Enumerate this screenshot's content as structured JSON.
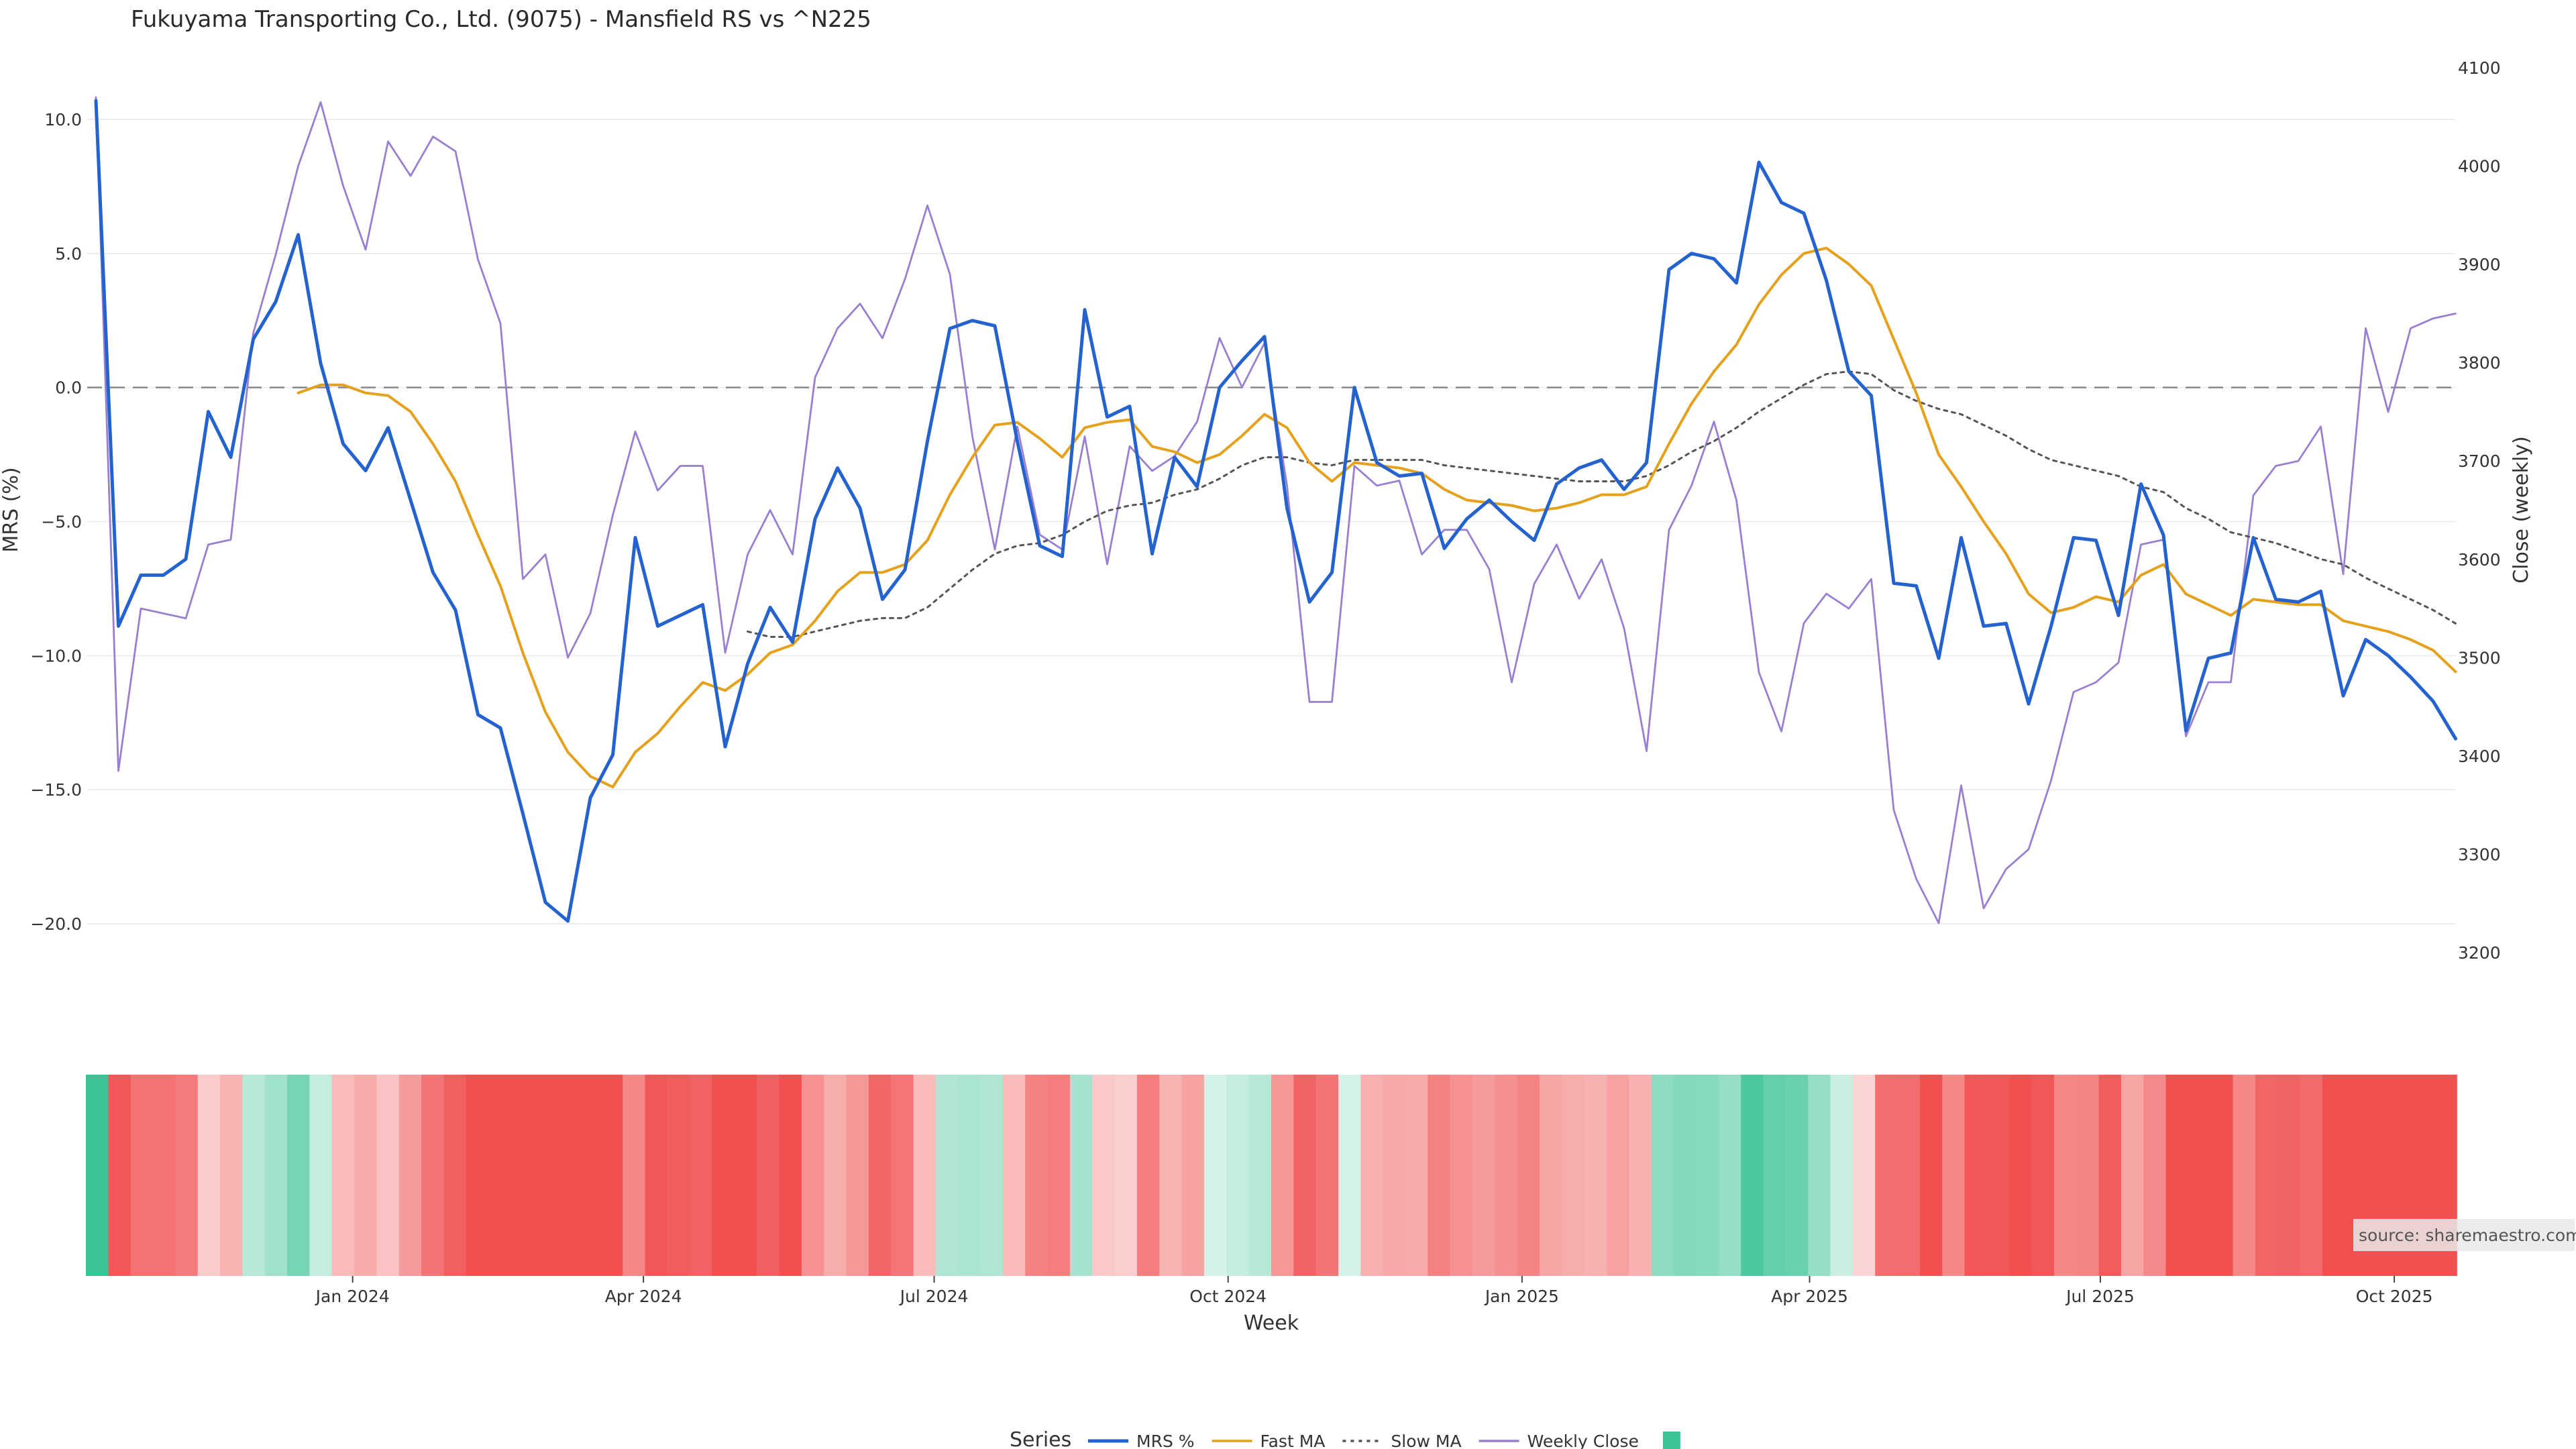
{
  "chart_data": {
    "type": "line",
    "title": "Fukuyama Transporting Co., Ltd. (9075) - Mansfield RS vs ^N225",
    "xlabel": "Week",
    "ylabel_left": "MRS (%)",
    "ylabel_right": "Close (weekly)",
    "ylim_left": [
      -22.0,
      10.8
    ],
    "ylim_right": [
      3200,
      4100
    ],
    "yticks_left": [
      "10.0",
      "5.0",
      "0.0",
      "−5.0",
      "−10.0",
      "−15.0",
      "−20.0"
    ],
    "yticks_left_values": [
      10,
      5,
      0,
      -5,
      -10,
      -15,
      -20
    ],
    "yticks_right": [
      "4100",
      "4000",
      "3900",
      "3800",
      "3700",
      "3600",
      "3500",
      "3400",
      "3300",
      "3200"
    ],
    "yticks_right_values": [
      4100,
      4000,
      3900,
      3800,
      3700,
      3600,
      3500,
      3400,
      3300,
      3200
    ],
    "x_start": "2023-10-13",
    "x_step_days": 7,
    "xticks": [
      {
        "label": "Jan 2024",
        "date": "2024-01-01"
      },
      {
        "label": "Apr 2024",
        "date": "2024-04-01"
      },
      {
        "label": "Jul 2024",
        "date": "2024-07-01"
      },
      {
        "label": "Oct 2024",
        "date": "2024-10-01"
      },
      {
        "label": "Jan 2025",
        "date": "2025-01-01"
      },
      {
        "label": "Apr 2025",
        "date": "2025-04-01"
      },
      {
        "label": "Jul 2025",
        "date": "2025-07-01"
      },
      {
        "label": "Oct 2025",
        "date": "2025-10-01"
      }
    ],
    "zero_line": 0,
    "grid": true,
    "legend_position": "bottom",
    "legend_title": "Series",
    "series": [
      {
        "name": "MRS %",
        "axis": "left",
        "color": "#2462d0",
        "style": "solid",
        "values": [
          10.7,
          -8.9,
          -7.0,
          -7.0,
          -6.4,
          -0.9,
          -2.6,
          1.8,
          3.2,
          5.7,
          0.9,
          -2.1,
          -3.1,
          -1.5,
          -4.2,
          -6.9,
          -8.3,
          -12.2,
          -12.7,
          -15.9,
          -19.2,
          -19.9,
          -15.3,
          -13.7,
          -5.6,
          -8.9,
          -8.5,
          -8.1,
          -13.4,
          -10.3,
          -8.2,
          -9.5,
          -4.9,
          -3.0,
          -4.5,
          -7.9,
          -6.8,
          -2.0,
          2.2,
          2.5,
          2.3,
          -2.0,
          -5.9,
          -6.3,
          2.9,
          -1.1,
          -0.7,
          -6.2,
          -2.6,
          -3.7,
          0.0,
          1.0,
          1.9,
          -4.5,
          -8.0,
          -6.9,
          0.0,
          -2.8,
          -3.3,
          -3.2,
          -6.0,
          -4.9,
          -4.2,
          -5.0,
          -5.7,
          -3.6,
          -3.0,
          -2.7,
          -3.8,
          -2.8,
          4.4,
          5.0,
          4.8,
          3.9,
          8.4,
          6.9,
          6.5,
          4.0,
          0.6,
          -0.3,
          -7.3,
          -7.4,
          -10.1,
          -5.6,
          -8.9,
          -8.8,
          -11.8,
          -8.9,
          -5.6,
          -5.7,
          -8.5,
          -3.6,
          -5.5,
          -12.8,
          -10.1,
          -9.9,
          -5.6,
          -7.9,
          -8.0,
          -7.6,
          -11.5,
          -9.4,
          -10.0,
          -10.8,
          -11.7,
          -13.1
        ]
      },
      {
        "name": "Fast MA",
        "axis": "left",
        "color": "#e6a11c",
        "style": "solid",
        "values": [
          null,
          null,
          null,
          null,
          null,
          null,
          null,
          null,
          null,
          -0.2,
          0.1,
          0.1,
          -0.2,
          -0.3,
          -0.9,
          -2.1,
          -3.5,
          -5.5,
          -7.4,
          -9.9,
          -12.1,
          -13.6,
          -14.5,
          -14.9,
          -13.6,
          -12.9,
          -11.9,
          -11.0,
          -11.3,
          -10.7,
          -9.9,
          -9.6,
          -8.7,
          -7.6,
          -6.9,
          -6.9,
          -6.6,
          -5.7,
          -4.0,
          -2.6,
          -1.4,
          -1.3,
          -1.9,
          -2.6,
          -1.5,
          -1.3,
          -1.2,
          -2.2,
          -2.4,
          -2.8,
          -2.5,
          -1.8,
          -1.0,
          -1.5,
          -2.8,
          -3.5,
          -2.8,
          -2.9,
          -3.0,
          -3.2,
          -3.8,
          -4.2,
          -4.3,
          -4.4,
          -4.6,
          -4.5,
          -4.3,
          -4.0,
          -4.0,
          -3.7,
          -2.1,
          -0.6,
          0.6,
          1.6,
          3.1,
          4.2,
          5.0,
          5.2,
          4.6,
          3.8,
          1.8,
          -0.2,
          -2.5,
          -3.7,
          -5.0,
          -6.2,
          -7.7,
          -8.4,
          -8.2,
          -7.8,
          -8.0,
          -7.0,
          -6.6,
          -7.7,
          -8.1,
          -8.5,
          -7.9,
          -8.0,
          -8.1,
          -8.1,
          -8.7,
          -8.9,
          -9.1,
          -9.4,
          -9.8,
          -10.6
        ]
      },
      {
        "name": "Slow MA",
        "axis": "left",
        "color": "#555555",
        "style": "dotted",
        "values": [
          null,
          null,
          null,
          null,
          null,
          null,
          null,
          null,
          null,
          null,
          null,
          null,
          null,
          null,
          null,
          null,
          null,
          null,
          null,
          null,
          null,
          null,
          null,
          null,
          null,
          null,
          null,
          null,
          null,
          -9.1,
          -9.3,
          -9.3,
          -9.1,
          -8.9,
          -8.7,
          -8.6,
          -8.6,
          -8.2,
          -7.5,
          -6.8,
          -6.2,
          -5.9,
          -5.8,
          -5.5,
          -5.0,
          -4.6,
          -4.4,
          -4.3,
          -4.0,
          -3.8,
          -3.4,
          -2.9,
          -2.6,
          -2.6,
          -2.8,
          -2.9,
          -2.7,
          -2.7,
          -2.7,
          -2.7,
          -2.9,
          -3.0,
          -3.1,
          -3.2,
          -3.3,
          -3.4,
          -3.5,
          -3.5,
          -3.5,
          -3.3,
          -2.9,
          -2.4,
          -2.0,
          -1.5,
          -0.9,
          -0.4,
          0.1,
          0.5,
          0.6,
          0.5,
          -0.1,
          -0.5,
          -0.8,
          -1.0,
          -1.4,
          -1.8,
          -2.3,
          -2.7,
          -2.9,
          -3.1,
          -3.3,
          -3.7,
          -3.9,
          -4.5,
          -4.9,
          -5.4,
          -5.6,
          -5.8,
          -6.1,
          -6.4,
          -6.6,
          -7.1,
          -7.5,
          -7.9,
          -8.3,
          -8.8
        ]
      },
      {
        "name": "Weekly Close",
        "axis": "right",
        "color": "#9a7fd0",
        "style": "solid",
        "values": [
          4070,
          3385,
          3550,
          3545,
          3540,
          3615,
          3620,
          3830,
          3910,
          4000,
          4065,
          3980,
          3915,
          4025,
          3990,
          4030,
          4015,
          3905,
          3840,
          3580,
          3605,
          3500,
          3545,
          3645,
          3730,
          3670,
          3695,
          3695,
          3505,
          3605,
          3650,
          3605,
          3785,
          3835,
          3860,
          3825,
          3885,
          3960,
          3890,
          3725,
          3610,
          3735,
          3625,
          3610,
          3725,
          3595,
          3715,
          3690,
          3705,
          3740,
          3825,
          3775,
          3820,
          3675,
          3455,
          3455,
          3695,
          3675,
          3680,
          3605,
          3630,
          3630,
          3590,
          3475,
          3575,
          3615,
          3560,
          3600,
          3530,
          3405,
          3630,
          3675,
          3740,
          3660,
          3485,
          3425,
          3535,
          3565,
          3550,
          3580,
          3345,
          3275,
          3230,
          3370,
          3245,
          3285,
          3305,
          3375,
          3465,
          3475,
          3495,
          3615,
          3620,
          3420,
          3475,
          3475,
          3665,
          3695,
          3700,
          3735,
          3585,
          3835,
          3750,
          3835,
          3845,
          3850
        ]
      }
    ],
    "heatmap_strip": {
      "description_values": "MRS % per week, colored green (positive) to red (negative)",
      "positive_color": "#3cc394",
      "negative_color": "#f05050"
    },
    "source": "source: sharemaestro.com"
  }
}
